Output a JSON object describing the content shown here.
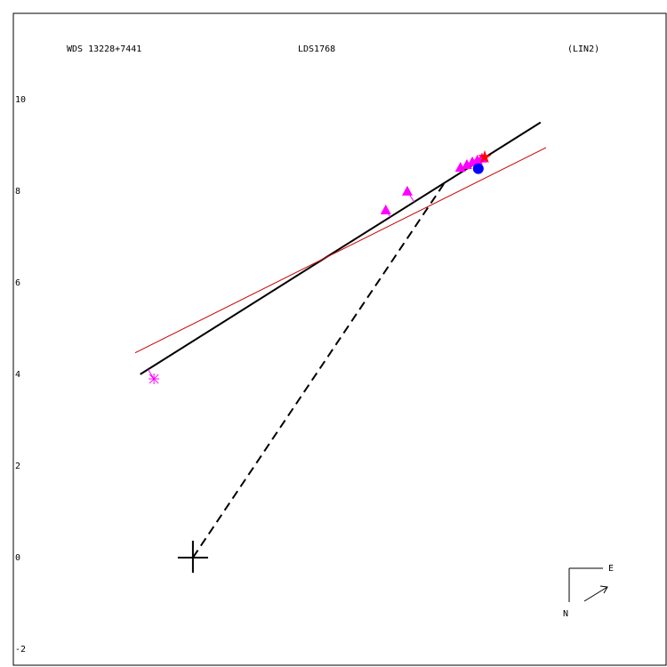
{
  "chart_data": {
    "type": "scatter",
    "title": "WDS 13228+7441",
    "subtitle": "LDS1768",
    "annotation": "(LIN2)",
    "xlim": [
      -3.92,
      10.33
    ],
    "ylim": [
      -2.35,
      11.88
    ],
    "yticks": [
      -2,
      0,
      2,
      4,
      6,
      8,
      10
    ],
    "grid": false,
    "compass": {
      "east": "E",
      "north": "N"
    },
    "origin": {
      "x": 0,
      "y": 0
    },
    "series": [
      {
        "color": "#ff00ff",
        "marker": "asterisk",
        "x": [
          -0.85
        ],
        "values": [
          3.9
        ]
      },
      {
        "color": "#ff00ff",
        "marker": "triangle",
        "x": [
          4.21,
          4.68,
          5.84,
          5.98,
          6.1,
          6.21,
          6.31
        ],
        "values": [
          7.59,
          8.0,
          8.52,
          8.58,
          8.64,
          8.68,
          8.72
        ]
      },
      {
        "color": "#0000ff",
        "marker": "circle",
        "x": [
          6.23
        ],
        "values": [
          8.49
        ]
      },
      {
        "color": "#ff0000",
        "marker": "star",
        "x": [
          6.37
        ],
        "values": [
          8.74
        ]
      }
    ],
    "lines": [
      {
        "color": "#000000",
        "dashed": false,
        "x": [
          -1.15,
          7.59
        ],
        "values": [
          4.0,
          9.5
        ]
      },
      {
        "color": "#cc0000",
        "dashed": false,
        "x": [
          -1.26,
          7.71
        ],
        "values": [
          4.47,
          8.95
        ]
      },
      {
        "color": "#000000",
        "dashed": true,
        "x": [
          0,
          5.5
        ],
        "values": [
          0,
          8.19
        ]
      }
    ]
  }
}
